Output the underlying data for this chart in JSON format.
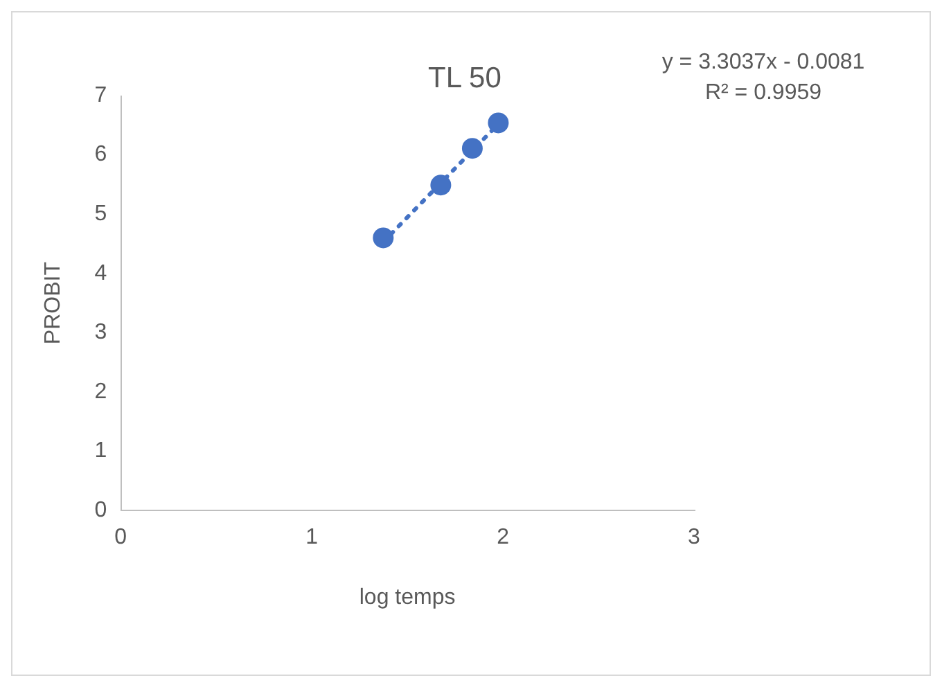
{
  "chart_data": {
    "type": "scatter",
    "title": "TL 50",
    "xlabel": "log temps",
    "ylabel": "PROBIT",
    "annotations": [
      "y = 3.3037x - 0.0081",
      "R² = 0.9959"
    ],
    "series": [
      {
        "color": "#4472c4",
        "x": [
          1.374,
          1.675,
          1.84,
          1.976
        ],
        "values": [
          4.6,
          5.49,
          6.11,
          6.54
        ],
        "marker": "circle"
      },
      {
        "type": "line",
        "color": "#4472c4",
        "x": [
          1.374,
          1.976
        ],
        "values": [
          4.53,
          6.52
        ],
        "line_style": "dotted",
        "marker": "none"
      }
    ],
    "xlim": [
      0,
      3
    ],
    "xticks": [
      0,
      1,
      2,
      3
    ],
    "ylim": [
      0,
      7
    ],
    "yticks": [
      0,
      1,
      2,
      3,
      4,
      5,
      6,
      7
    ],
    "grid": false,
    "legend": false
  }
}
